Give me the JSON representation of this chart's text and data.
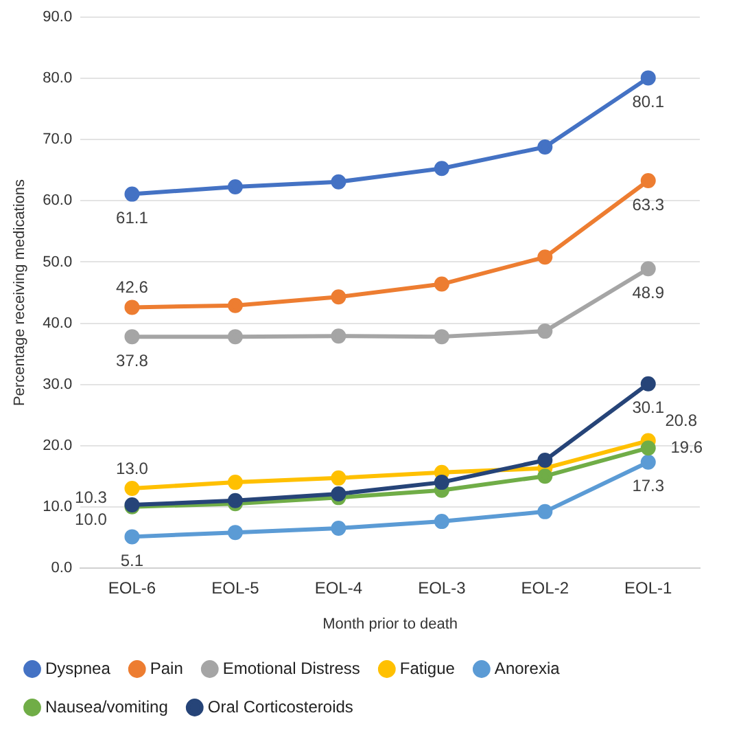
{
  "chart_data": {
    "type": "line",
    "xlabel": "Month prior to death",
    "ylabel": "Percentage receiving medications",
    "categories": [
      "EOL-6",
      "EOL-5",
      "EOL-4",
      "EOL-3",
      "EOL-2",
      "EOL-1"
    ],
    "ylim": [
      0,
      90
    ],
    "yticks": [
      {
        "value": 0,
        "label": "0.0"
      },
      {
        "value": 10,
        "label": "10.0"
      },
      {
        "value": 20,
        "label": "20.0"
      },
      {
        "value": 30,
        "label": "30.0"
      },
      {
        "value": 40,
        "label": "40.0"
      },
      {
        "value": 50,
        "label": "50.0"
      },
      {
        "value": 60,
        "label": "60.0"
      },
      {
        "value": 70,
        "label": "70.0"
      },
      {
        "value": 80,
        "label": "80.0"
      },
      {
        "value": 90,
        "label": "90.0"
      }
    ],
    "grid": "y",
    "legend": "bottom",
    "marker": "circle",
    "line_style": "solid",
    "series": [
      {
        "name": "Dyspnea",
        "color": "#4472c4",
        "values": [
          61.1,
          62.3,
          63.1,
          65.3,
          68.8,
          80.1
        ],
        "value_labels": [
          "61.1",
          null,
          null,
          null,
          null,
          "80.1"
        ]
      },
      {
        "name": "Pain",
        "color": "#ed7d31",
        "values": [
          42.6,
          42.9,
          44.3,
          46.4,
          50.8,
          63.3
        ],
        "value_labels": [
          "42.6",
          null,
          null,
          null,
          null,
          "63.3"
        ]
      },
      {
        "name": "Emotional Distress",
        "color": "#a5a5a5",
        "values": [
          37.8,
          37.8,
          37.9,
          37.8,
          38.7,
          48.9
        ],
        "value_labels": [
          "37.8",
          null,
          null,
          null,
          null,
          "48.9"
        ]
      },
      {
        "name": "Fatigue",
        "color": "#ffc000",
        "values": [
          13.0,
          14.0,
          14.7,
          15.6,
          16.3,
          20.8
        ],
        "value_labels": [
          "13.0",
          null,
          null,
          null,
          null,
          "20.8"
        ]
      },
      {
        "name": "Anorexia",
        "color": "#5b9bd5",
        "values": [
          5.1,
          5.8,
          6.5,
          7.6,
          9.2,
          17.3
        ],
        "value_labels": [
          "5.1",
          null,
          null,
          null,
          null,
          "17.3"
        ]
      },
      {
        "name": "Nausea/vomiting",
        "color": "#70ad47",
        "values": [
          10.0,
          10.5,
          11.5,
          12.7,
          15.0,
          19.6
        ],
        "value_labels": [
          "10.0",
          null,
          null,
          null,
          null,
          "19.6"
        ]
      },
      {
        "name": "Oral Corticosteroids",
        "color": "#264478",
        "values": [
          10.3,
          11.0,
          12.1,
          14.0,
          17.6,
          30.1
        ],
        "value_labels": [
          "10.3",
          null,
          null,
          null,
          null,
          "30.1"
        ]
      }
    ]
  }
}
